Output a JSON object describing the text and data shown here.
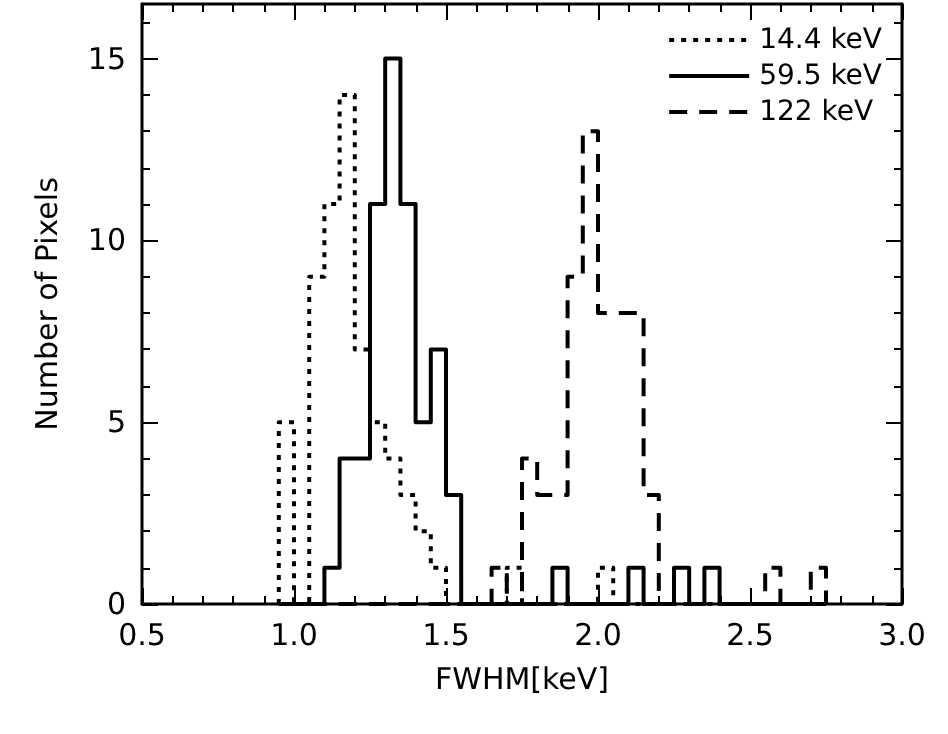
{
  "chart_data": {
    "type": "histogram",
    "xlabel": "FWHM[keV]",
    "ylabel": "Number of Pixels",
    "bins": [
      0.95,
      1.0,
      1.05,
      1.1,
      1.15,
      1.2,
      1.25,
      1.3,
      1.35,
      1.4,
      1.45,
      1.5,
      1.55,
      1.65,
      1.7,
      1.75,
      1.8,
      1.85,
      1.9,
      1.95,
      2.0,
      2.05,
      2.1,
      2.15,
      2.2,
      2.25,
      2.3,
      2.35,
      2.4,
      2.55,
      2.6,
      2.7,
      2.75
    ],
    "series": [
      {
        "name": "14.4 keV",
        "color": "#000000",
        "line_style": "dotted",
        "values": [
          5,
          0,
          9,
          11,
          14,
          7,
          5,
          4,
          3,
          2,
          1,
          0,
          0,
          0,
          1,
          0,
          0,
          0,
          0,
          0,
          1,
          0,
          0,
          0,
          0,
          0,
          0,
          0,
          0,
          0,
          0,
          0
        ]
      },
      {
        "name": "59.5 keV",
        "color": "#000000",
        "line_style": "solid",
        "values": [
          0,
          0,
          0,
          1,
          4,
          4,
          11,
          15,
          11,
          5,
          7,
          3,
          0,
          0,
          0,
          0,
          0,
          1,
          0,
          0,
          0,
          0,
          1,
          0,
          0,
          1,
          0,
          1,
          0,
          0,
          0,
          0
        ]
      },
      {
        "name": "122 keV",
        "color": "#000000",
        "line_style": "dashed",
        "values": [
          0,
          0,
          0,
          0,
          0,
          0,
          0,
          0,
          0,
          0,
          0,
          0,
          0,
          1,
          0,
          4,
          3,
          3,
          9,
          13,
          8,
          8,
          8,
          3,
          0,
          0,
          0,
          0,
          0,
          1,
          0,
          1
        ]
      }
    ],
    "xlim": [
      0.5,
      3.0
    ],
    "xticks": [
      0.5,
      {
        "value": 1,
        "label": "1.0"
      },
      1.5,
      {
        "value": 2,
        "label": "2.0"
      },
      2.5,
      {
        "value": 3,
        "label": "3.0"
      }
    ],
    "ylim": [
      0,
      16.5
    ],
    "yticks": [
      0,
      5,
      10,
      15
    ],
    "grid": false,
    "legend": "top right"
  }
}
